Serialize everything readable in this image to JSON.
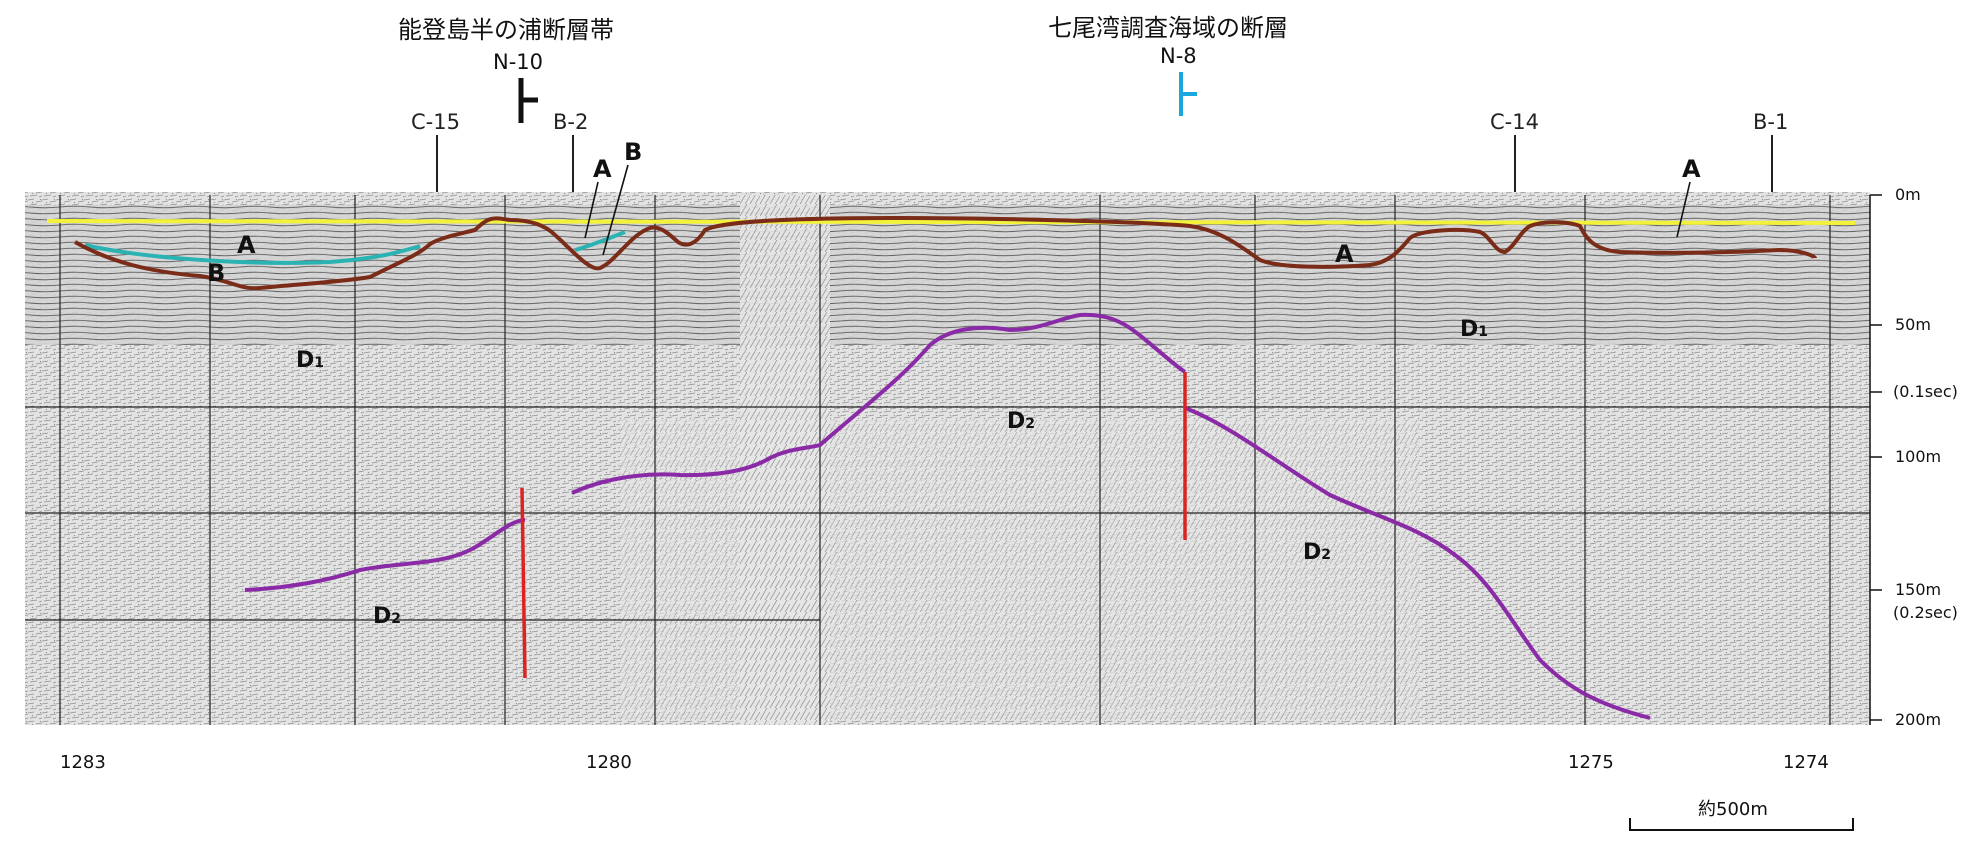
{
  "titles": {
    "left": "能登島半の浦断層帯",
    "right": "七尾湾調査海域の断層"
  },
  "survey_lines": [
    {
      "label": "N-10",
      "color": "#111111"
    },
    {
      "label": "N-8",
      "color": "#1aa7df"
    }
  ],
  "crossing_markers": [
    "C-15",
    "B-2",
    "C-14",
    "B-1"
  ],
  "depth_scale": {
    "d0": "0m",
    "d50": "50m",
    "t01": "(0.1sec)",
    "d100": "100m",
    "d150": "150m",
    "t02": "(0.2sec)",
    "d200": "200m"
  },
  "x_labels": [
    "1283",
    "1280",
    "1275",
    "1274"
  ],
  "scale_bar": "約500m",
  "unit_labels": {
    "a": "A",
    "b": "B",
    "d1": "D",
    "d1_sub": "1",
    "d2": "D",
    "d2_sub": "2"
  },
  "colors": {
    "sea_floor": "#f2f23a",
    "horizon_a": "#2bb3b3",
    "horizon_b": "#7a2c18",
    "horizon_d2": "#8a2aa6",
    "fault": "#dd2222",
    "section_bg": "#d9d9d9"
  }
}
